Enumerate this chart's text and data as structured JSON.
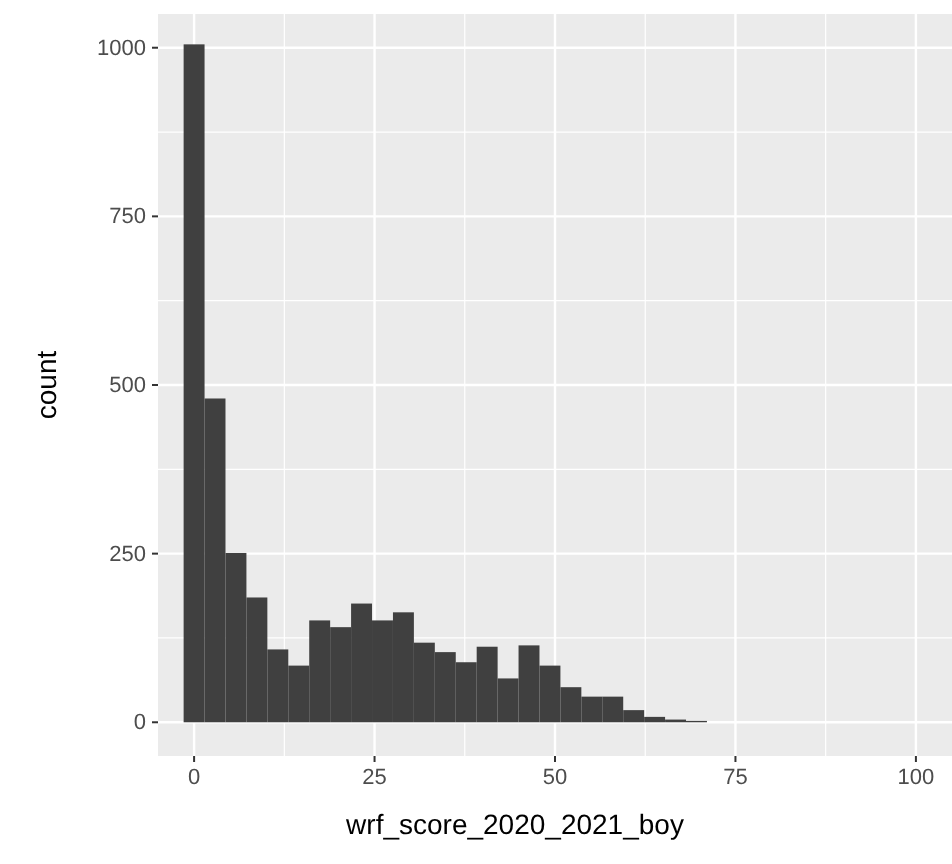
{
  "chart_data": {
    "type": "histogram",
    "xlabel": "wrf_score_2020_2021_boy",
    "ylabel": "count",
    "color": "#404040",
    "bins": [
      -1.45,
      1.45,
      4.35,
      7.25,
      10.15,
      13.05,
      15.95,
      18.85,
      21.75,
      24.65,
      27.55,
      30.45,
      33.35,
      36.25,
      39.15,
      42.05,
      44.95,
      47.85,
      50.75,
      53.65,
      56.55,
      59.45,
      62.35,
      65.25,
      68.15,
      71.05
    ],
    "values": [
      1005,
      480,
      251,
      185,
      108,
      84,
      151,
      141,
      176,
      151,
      163,
      118,
      104,
      89,
      112,
      65,
      114,
      84,
      52,
      38,
      38,
      18,
      8,
      4,
      2
    ],
    "xlim": [
      -5,
      105
    ],
    "ylim": [
      -50,
      1050
    ],
    "xticks": [
      0,
      25,
      50,
      75,
      100
    ],
    "yticks": [
      0,
      250,
      500,
      750,
      1000
    ],
    "grid": true
  }
}
